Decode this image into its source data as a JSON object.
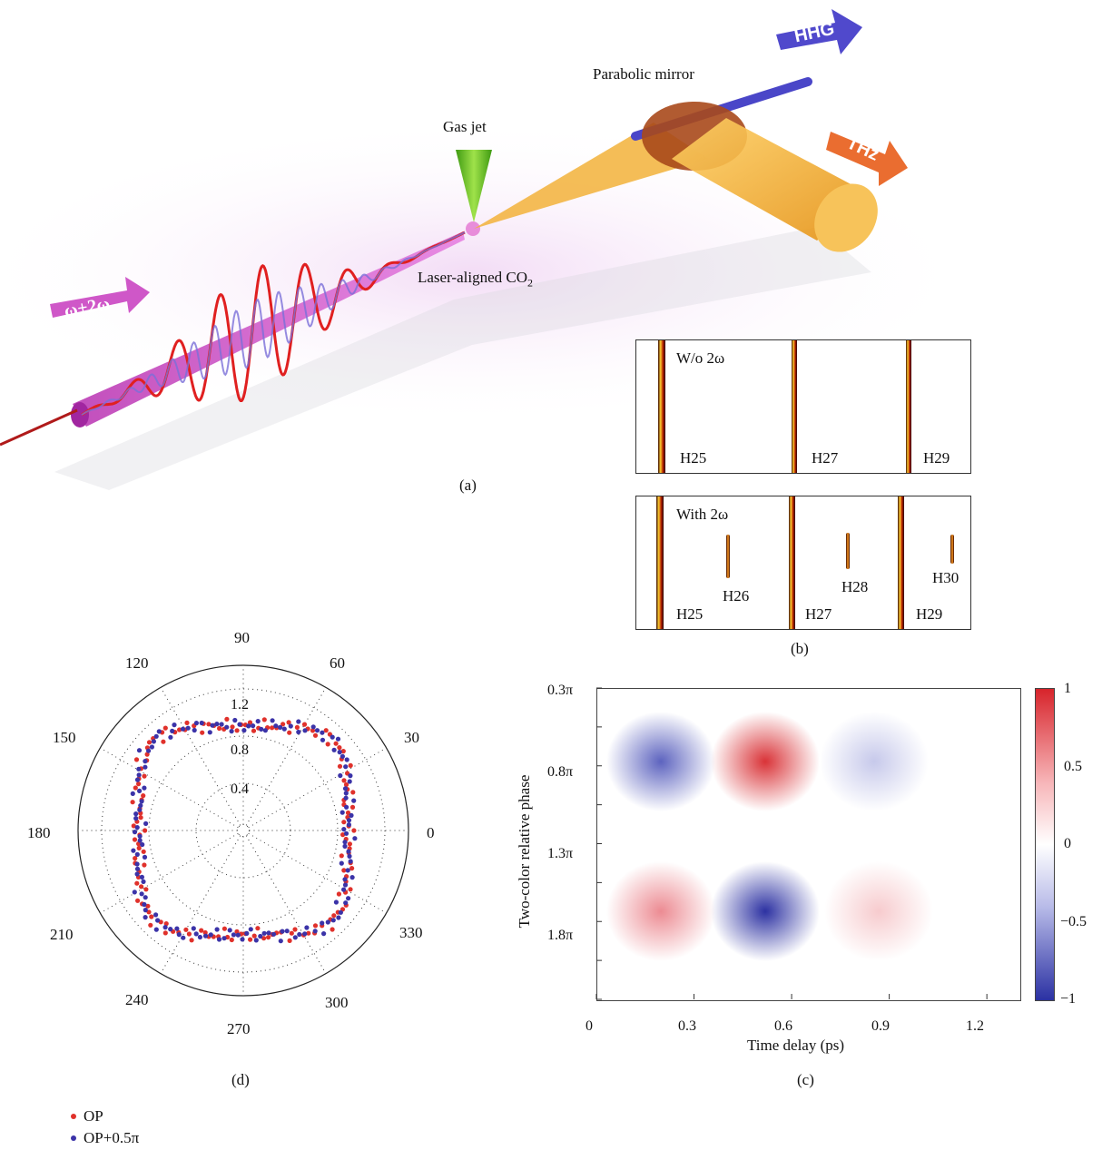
{
  "panel_a": {
    "caption": "(a)",
    "labels": {
      "gas_jet": "Gas jet",
      "parabolic_mirror": "Parabolic mirror",
      "laser_aligned_prefix": "Laser-aligned CO",
      "laser_aligned_sub": "2",
      "hhg": "HHG",
      "thz": "THz",
      "input_beam": "ω+2ω"
    },
    "colors": {
      "pump": "#c837c0",
      "thz": "#f0a020",
      "hhg": "#4a46c8",
      "jet": "#6bc22a",
      "wave": "#e02020"
    }
  },
  "panel_b": {
    "caption": "(b)",
    "top": {
      "title": "W/o 2ω",
      "harmonics": [
        "H25",
        "H27",
        "H29"
      ]
    },
    "bottom": {
      "title": "With 2ω",
      "harmonics": [
        "H25",
        "H26",
        "H27",
        "H28",
        "H29",
        "H30"
      ]
    }
  },
  "panel_c": {
    "caption": "(c)",
    "xlabel": "Time delay (ps)",
    "ylabel": "Two-color relative phase",
    "xticks": [
      "0",
      "0.3",
      "0.6",
      "0.9",
      "1.2"
    ],
    "yticks": [
      "0.3π",
      "0.8π",
      "1.3π",
      "1.8π"
    ],
    "colorbar_ticks": [
      "1",
      "0.5",
      "0",
      "−0.5",
      "−1"
    ]
  },
  "panel_d": {
    "caption": "(d)",
    "angle_labels": [
      "0",
      "30",
      "60",
      "90",
      "120",
      "150",
      "180",
      "210",
      "240",
      "270",
      "300",
      "330"
    ],
    "radial_labels": [
      "0.4",
      "0.8",
      "1.2"
    ],
    "legend": [
      {
        "label": "OP",
        "color": "#e0312b"
      },
      {
        "label": "OP+0.5π",
        "color": "#3b33a8"
      }
    ]
  },
  "chart_data": [
    {
      "type": "heatmap",
      "xlabel": "Time delay (ps)",
      "ylabel": "Two-color relative phase",
      "x": [
        0.3,
        0.6,
        0.95
      ],
      "y": [
        "0.8π",
        "1.8π"
      ],
      "values": [
        [
          -0.7,
          0.9,
          -0.2
        ],
        [
          0.6,
          -0.95,
          0.25
        ]
      ],
      "xlim": [
        0,
        1.3
      ],
      "clim": [
        -1,
        1
      ],
      "colormap": "blue-white-red"
    },
    {
      "type": "scatter",
      "polar": true,
      "rlim": [
        0,
        1.4
      ],
      "rticks": [
        0.4,
        0.8,
        1.2
      ],
      "series": [
        {
          "name": "OP",
          "color": "#e0312b",
          "mean_radius": 1.0
        },
        {
          "name": "OP+0.5π",
          "color": "#3b33a8",
          "mean_radius": 1.0
        }
      ]
    }
  ]
}
